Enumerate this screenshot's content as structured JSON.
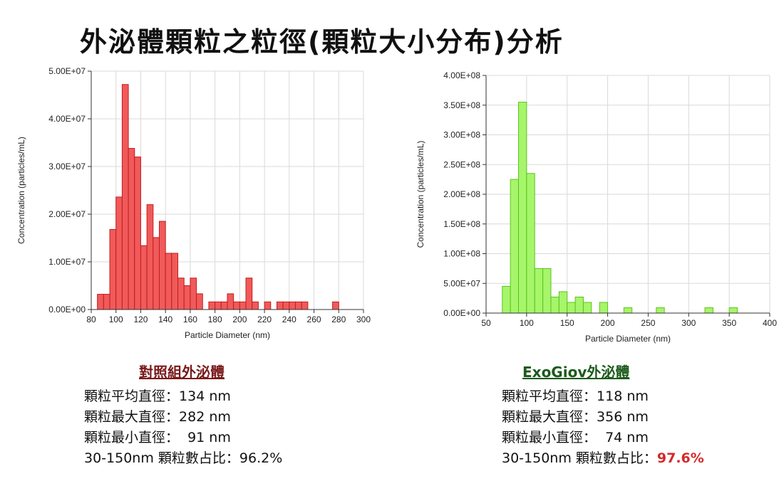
{
  "title": "外泌體顆粒之粒徑(顆粒大小分布)分析",
  "chart_data": [
    {
      "type": "bar",
      "xlabel": "Particle Diameter (nm)",
      "ylabel": "Concentration (particles/mL)",
      "xlim": [
        80,
        300
      ],
      "ylim": [
        0,
        50000000
      ],
      "xticks": [
        "80",
        "100",
        "120",
        "140",
        "160",
        "180",
        "200",
        "220",
        "240",
        "260",
        "280",
        "300"
      ],
      "yticks": [
        "0.00E+00",
        "1.00E+07",
        "2.00E+07",
        "3.00E+07",
        "4.00E+07",
        "5.00E+07"
      ],
      "color": "#f05a5a",
      "edge_color": "#c41c1c",
      "grid": true,
      "bin_width": 5,
      "bins": [
        {
          "x": 87.5,
          "y": 3200000
        },
        {
          "x": 92.5,
          "y": 3200000
        },
        {
          "x": 97.5,
          "y": 16800000
        },
        {
          "x": 102.5,
          "y": 23600000
        },
        {
          "x": 107.5,
          "y": 47200000
        },
        {
          "x": 112.5,
          "y": 33800000
        },
        {
          "x": 117.5,
          "y": 32000000
        },
        {
          "x": 122.5,
          "y": 13400000
        },
        {
          "x": 127.5,
          "y": 22000000
        },
        {
          "x": 132.5,
          "y": 15100000
        },
        {
          "x": 137.5,
          "y": 18500000
        },
        {
          "x": 142.5,
          "y": 11800000
        },
        {
          "x": 147.5,
          "y": 11800000
        },
        {
          "x": 152.5,
          "y": 6600000
        },
        {
          "x": 157.5,
          "y": 5000000
        },
        {
          "x": 162.5,
          "y": 6600000
        },
        {
          "x": 167.5,
          "y": 3300000
        },
        {
          "x": 177.5,
          "y": 1600000
        },
        {
          "x": 182.5,
          "y": 1600000
        },
        {
          "x": 187.5,
          "y": 1600000
        },
        {
          "x": 192.5,
          "y": 3300000
        },
        {
          "x": 197.5,
          "y": 1600000
        },
        {
          "x": 202.5,
          "y": 1600000
        },
        {
          "x": 207.5,
          "y": 6600000
        },
        {
          "x": 212.5,
          "y": 1600000
        },
        {
          "x": 222.5,
          "y": 1600000
        },
        {
          "x": 232.5,
          "y": 1600000
        },
        {
          "x": 237.5,
          "y": 1600000
        },
        {
          "x": 242.5,
          "y": 1600000
        },
        {
          "x": 247.5,
          "y": 1600000
        },
        {
          "x": 252.5,
          "y": 1600000
        },
        {
          "x": 277.5,
          "y": 1600000
        }
      ]
    },
    {
      "type": "bar",
      "xlabel": "Particle Diameter (nm)",
      "ylabel": "Concentration (particles/mL)",
      "xlim": [
        50,
        400
      ],
      "ylim": [
        0,
        400000000
      ],
      "xticks": [
        "50",
        "100",
        "150",
        "200",
        "250",
        "300",
        "350",
        "400"
      ],
      "yticks": [
        "0.00E+00",
        "5.00E+07",
        "1.00E+08",
        "1.50E+08",
        "2.00E+08",
        "2.50E+08",
        "3.00E+08",
        "3.50E+08",
        "4.00E+08"
      ],
      "color": "#a6f56a",
      "edge_color": "#5bc41c",
      "grid": true,
      "bin_width": 10,
      "bins": [
        {
          "x": 75,
          "y": 45000000
        },
        {
          "x": 85,
          "y": 225000000
        },
        {
          "x": 95,
          "y": 355000000
        },
        {
          "x": 105,
          "y": 235000000
        },
        {
          "x": 115,
          "y": 75000000
        },
        {
          "x": 125,
          "y": 75000000
        },
        {
          "x": 135,
          "y": 27000000
        },
        {
          "x": 145,
          "y": 36000000
        },
        {
          "x": 155,
          "y": 18000000
        },
        {
          "x": 165,
          "y": 27000000
        },
        {
          "x": 175,
          "y": 18000000
        },
        {
          "x": 195,
          "y": 18000000
        },
        {
          "x": 225,
          "y": 9000000
        },
        {
          "x": 265,
          "y": 9000000
        },
        {
          "x": 325,
          "y": 9000000
        },
        {
          "x": 355,
          "y": 9000000
        }
      ]
    }
  ],
  "groups": [
    {
      "name": "對照組外泌體",
      "stats": [
        {
          "label": "顆粒平均直徑：",
          "value": "134 nm"
        },
        {
          "label": "顆粒最大直徑：",
          "value": "282 nm"
        },
        {
          "label": "顆粒最小直徑：",
          "value": "  91 nm"
        },
        {
          "label": "30-150nm 顆粒數占比：",
          "value": "96.2%"
        }
      ]
    },
    {
      "name": "ExoGiov外泌體",
      "stats": [
        {
          "label": "顆粒平均直徑：",
          "value": "118 nm"
        },
        {
          "label": "顆粒最大直徑：",
          "value": "356 nm"
        },
        {
          "label": "顆粒最小直徑：",
          "value": "  74 nm"
        },
        {
          "label": "30-150nm 顆粒數占比：",
          "value": "97.6%"
        }
      ]
    }
  ]
}
